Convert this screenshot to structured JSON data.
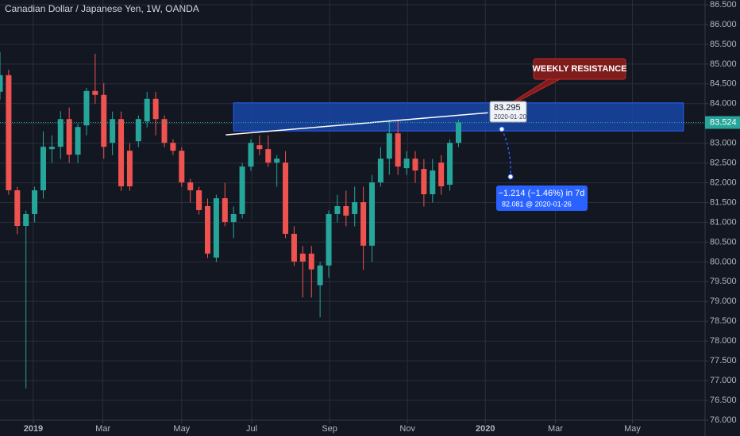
{
  "chart_data": {
    "type": "candlestick",
    "title": "Canadian Dollar / Japanese Yen, 1W, OANDA",
    "x": [
      0,
      1,
      2,
      3,
      4,
      5,
      6,
      7,
      8,
      9,
      10,
      11,
      12,
      13,
      14,
      15,
      16,
      17,
      18,
      19,
      20,
      21,
      22,
      23,
      24,
      25,
      26,
      27,
      28,
      29,
      30,
      31,
      32,
      33,
      34,
      35,
      36,
      37,
      38,
      39,
      40,
      41,
      42,
      43,
      44,
      45,
      46,
      47,
      48,
      49,
      50,
      51,
      52,
      53
    ],
    "open": [
      84.3,
      84.72,
      81.81,
      80.91,
      81.21,
      81.81,
      82.85,
      82.91,
      83.61,
      82.71,
      83.45,
      84.32,
      84.22,
      83.01,
      83.61,
      82.81,
      83.05,
      83.55,
      84.12,
      83.61,
      83.01,
      82.81,
      82.01,
      81.81,
      81.41,
      80.11,
      81.61,
      81.01,
      81.21,
      82.41,
      82.95,
      82.85,
      82.51,
      82.51,
      80.71,
      80.21,
      80.21,
      79.41,
      79.91,
      81.21,
      81.41,
      81.21,
      81.51,
      80.41,
      82.01,
      82.61,
      83.25,
      82.37,
      82.61,
      82.35,
      81.71,
      82.51,
      81.95,
      83.01
    ],
    "high": [
      85.3,
      84.86,
      81.9,
      81.3,
      81.9,
      83.3,
      83.2,
      83.81,
      83.9,
      83.5,
      84.4,
      85.26,
      84.52,
      83.8,
      83.8,
      83.0,
      83.7,
      84.3,
      84.3,
      83.7,
      83.1,
      82.9,
      82.1,
      81.9,
      81.6,
      81.7,
      82.0,
      81.4,
      82.5,
      83.1,
      83.2,
      83.2,
      82.7,
      82.8,
      80.9,
      80.4,
      80.4,
      80.0,
      81.3,
      81.7,
      81.8,
      81.9,
      81.9,
      82.2,
      82.9,
      83.6,
      83.6,
      82.8,
      82.8,
      82.6,
      82.6,
      82.7,
      83.1,
      83.6
    ],
    "low": [
      84.1,
      81.7,
      80.7,
      76.8,
      81.0,
      81.6,
      82.5,
      82.6,
      82.5,
      82.5,
      83.2,
      84.0,
      82.61,
      82.7,
      81.8,
      81.8,
      82.9,
      83.4,
      83.2,
      82.9,
      82.7,
      81.9,
      81.5,
      81.2,
      80.1,
      80.0,
      80.9,
      80.6,
      81.1,
      82.3,
      82.7,
      82.4,
      81.9,
      80.6,
      79.9,
      79.1,
      79.1,
      78.6,
      79.6,
      81.0,
      80.9,
      80.9,
      79.8,
      80.0,
      81.9,
      82.2,
      82.2,
      82.2,
      82.0,
      81.4,
      81.5,
      81.7,
      81.8,
      82.9
    ],
    "close": [
      84.72,
      81.81,
      80.91,
      81.21,
      81.81,
      82.91,
      82.91,
      83.61,
      82.71,
      83.41,
      84.32,
      84.22,
      82.91,
      83.61,
      81.91,
      81.91,
      83.61,
      84.12,
      83.61,
      83.01,
      82.81,
      82.01,
      81.81,
      81.31,
      80.21,
      81.61,
      81.01,
      81.21,
      82.41,
      83.01,
      82.85,
      82.51,
      82.61,
      80.71,
      80.01,
      80.01,
      79.81,
      79.91,
      81.21,
      81.41,
      81.17,
      81.51,
      80.41,
      82.01,
      82.61,
      83.25,
      82.41,
      82.61,
      82.31,
      81.71,
      82.31,
      81.91,
      83.01,
      83.524
    ],
    "up_color": "#26a69a",
    "down_color": "#ef5350",
    "xlim": [
      0,
      81.5
    ],
    "xticks": [
      {
        "value": 3.85,
        "label": "2019"
      },
      {
        "value": 11.9,
        "label": "Mar"
      },
      {
        "value": 21,
        "label": "May"
      },
      {
        "value": 29.1,
        "label": "Jul"
      },
      {
        "value": 38.1,
        "label": "Sep"
      },
      {
        "value": 47.1,
        "label": "Nov"
      },
      {
        "value": 56.1,
        "label": "2020"
      },
      {
        "value": 64.2,
        "label": "Mar"
      },
      {
        "value": 73.1,
        "label": "May"
      }
    ],
    "ylim": [
      76.0,
      86.62
    ],
    "yticks": [
      {
        "value": 76,
        "label": "76.000"
      },
      {
        "value": 76.5,
        "label": "76.500"
      },
      {
        "value": 77,
        "label": "77.000"
      },
      {
        "value": 77.5,
        "label": "77.500"
      },
      {
        "value": 78,
        "label": "78.000"
      },
      {
        "value": 78.5,
        "label": "78.500"
      },
      {
        "value": 79,
        "label": "79.000"
      },
      {
        "value": 79.5,
        "label": "79.500"
      },
      {
        "value": 80,
        "label": "80.000"
      },
      {
        "value": 80.5,
        "label": "80.500"
      },
      {
        "value": 81,
        "label": "81.000"
      },
      {
        "value": 81.5,
        "label": "81.500"
      },
      {
        "value": 82,
        "label": "82.000"
      },
      {
        "value": 82.5,
        "label": "82.500"
      },
      {
        "value": 83,
        "label": "83.000"
      },
      {
        "value": 83.5,
        "label": "83.500"
      },
      {
        "value": 84,
        "label": "84.000"
      },
      {
        "value": 84.5,
        "label": "84.500"
      },
      {
        "value": 85,
        "label": "85.000"
      },
      {
        "value": 85.5,
        "label": "85.500"
      },
      {
        "value": 86,
        "label": "86.000"
      },
      {
        "value": 86.5,
        "label": "86.500"
      }
    ],
    "grid": true,
    "zone": {
      "x": [
        27,
        79
      ],
      "y": [
        83.31,
        84.02
      ]
    },
    "trendline": {
      "x": [
        26.1,
        56.4
      ],
      "y": [
        83.21,
        83.77
      ]
    },
    "callout": "WEEKLY RESISTANCE",
    "point_label": {
      "value": 83.295,
      "date": "2020-01-20"
    },
    "projection": {
      "change": "−1.214 (−1.46%) in 7d",
      "target": "82.081 @ 2020-01-26"
    }
  }
}
